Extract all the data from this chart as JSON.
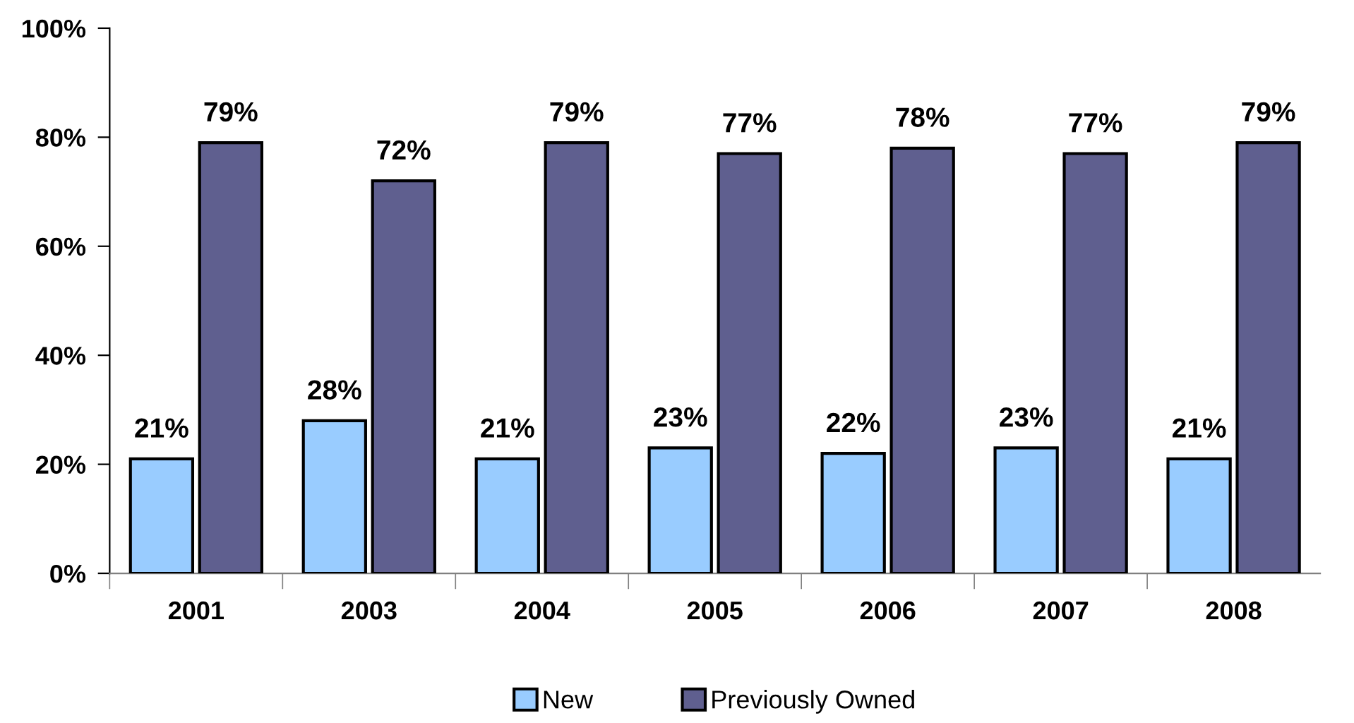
{
  "chart_data": {
    "type": "bar",
    "categories": [
      "2001",
      "2003",
      "2004",
      "2005",
      "2006",
      "2007",
      "2008"
    ],
    "series": [
      {
        "name": "New",
        "color": "#99ccff",
        "values": [
          21,
          28,
          21,
          23,
          22,
          23,
          21
        ],
        "value_labels": [
          "21%",
          "28%",
          "21%",
          "23%",
          "22%",
          "23%",
          "21%"
        ]
      },
      {
        "name": "Previously Owned",
        "color": "#5f5f8f",
        "values": [
          79,
          72,
          79,
          77,
          78,
          77,
          79
        ],
        "value_labels": [
          "79%",
          "72%",
          "79%",
          "77%",
          "78%",
          "77%",
          "79%"
        ]
      }
    ],
    "ylim": [
      0,
      100
    ],
    "yticks": [
      {
        "value": 0,
        "label": "0%"
      },
      {
        "value": 20,
        "label": "20%"
      },
      {
        "value": 40,
        "label": "40%"
      },
      {
        "value": 60,
        "label": "60%"
      },
      {
        "value": 80,
        "label": "80%"
      },
      {
        "value": 100,
        "label": "100%"
      }
    ],
    "grid": false,
    "legend": "bottom"
  }
}
